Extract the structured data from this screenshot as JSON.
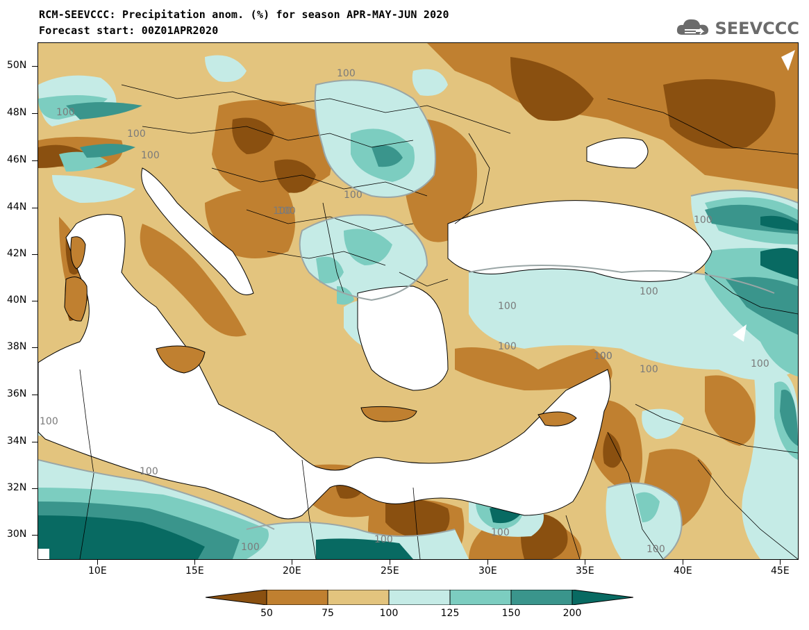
{
  "header": {
    "title_line1": "RCM-SEEVCCC: Precipitation anom. (%) for season APR-MAY-JUN 2020",
    "title_line2": "Forecast start: 00Z01APR2020"
  },
  "logo": {
    "text": "SEEVCCC",
    "icon": "cloud-icon"
  },
  "map": {
    "lat_labels": [
      "50N",
      "48N",
      "46N",
      "44N",
      "42N",
      "40N",
      "38N",
      "36N",
      "34N",
      "32N",
      "30N"
    ],
    "lon_labels": [
      "10E",
      "15E",
      "20E",
      "25E",
      "30E",
      "35E",
      "40E",
      "45E"
    ],
    "contour_labels": [
      "100",
      "100",
      "100",
      "100",
      "100",
      "100",
      "100",
      "100",
      "100",
      "100",
      "100",
      "100",
      "100",
      "100",
      "100",
      "100",
      "100",
      "100",
      "100",
      "100",
      "100"
    ]
  },
  "legend": {
    "labels": [
      "50",
      "75",
      "100",
      "125",
      "150",
      "200"
    ],
    "colors": [
      "#8a5010",
      "#c08030",
      "#e3c47e",
      "#c5ebe6",
      "#7ccdc0",
      "#3a958c",
      "#086a62"
    ]
  },
  "palette": {
    "very_dry": "#8a5010",
    "dry": "#c08030",
    "slightly_dry": "#e3c47e",
    "slightly_wet": "#c5ebe6",
    "wet": "#7ccdc0",
    "very_wet": "#3a958c",
    "extremely_wet": "#086a62",
    "sea": "#ffffff",
    "contour": "#9aa6a6"
  }
}
